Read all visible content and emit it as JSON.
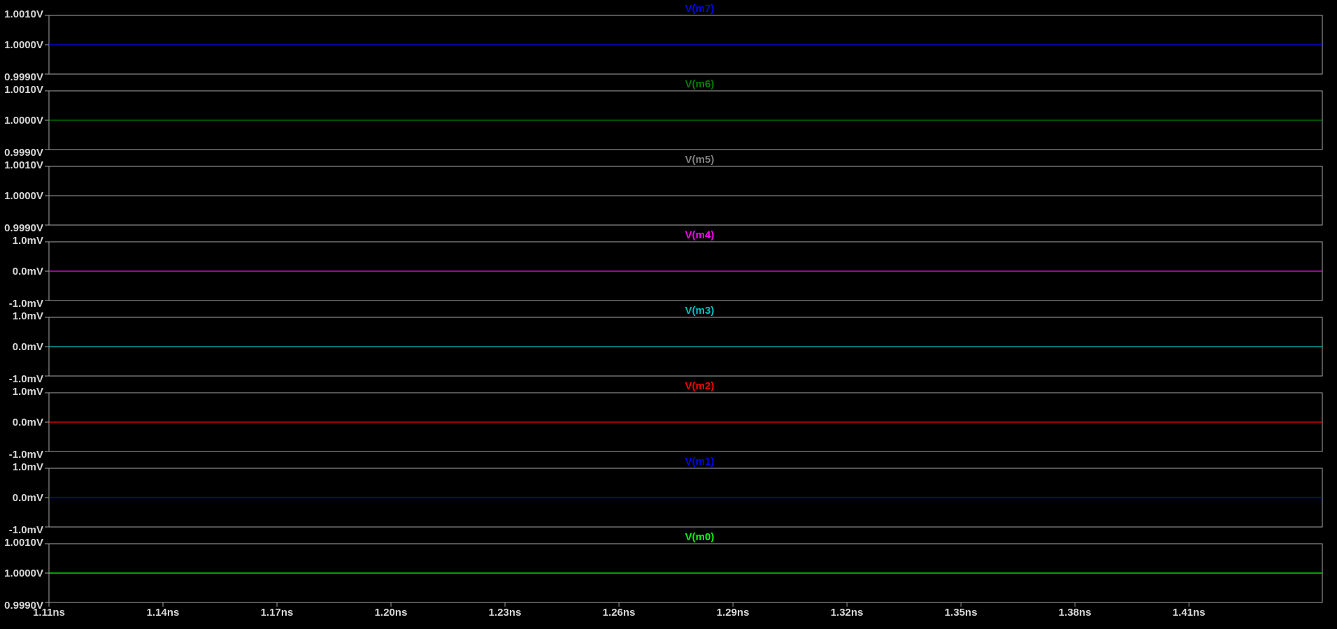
{
  "chart_data": {
    "type": "line",
    "grid": false,
    "x_axis": {
      "unit": "ns",
      "range": [
        1.11,
        1.4451
      ],
      "ticks": [
        1.11,
        1.14,
        1.17,
        1.2,
        1.23,
        1.26,
        1.29,
        1.32,
        1.35,
        1.38,
        1.41
      ],
      "tick_labels": [
        "1.11ns",
        "1.14ns",
        "1.17ns",
        "1.20ns",
        "1.23ns",
        "1.26ns",
        "1.29ns",
        "1.32ns",
        "1.35ns",
        "1.38ns",
        "1.41ns"
      ]
    },
    "panes": [
      {
        "name": "V(m7)",
        "color": "#0000ff",
        "ylim": [
          0.999,
          1.001
        ],
        "y_ticks": [
          1.001,
          1.0,
          0.999
        ],
        "y_tick_labels": [
          "1.0010V",
          "1.0000V",
          "0.9990V"
        ],
        "x": [
          1.11,
          1.4451
        ],
        "y": [
          1.0,
          1.0
        ]
      },
      {
        "name": "V(m6)",
        "color": "#008000",
        "ylim": [
          0.999,
          1.001
        ],
        "y_ticks": [
          1.001,
          1.0,
          0.999
        ],
        "y_tick_labels": [
          "1.0010V",
          "1.0000V",
          "0.9990V"
        ],
        "x": [
          1.11,
          1.4451
        ],
        "y": [
          1.0,
          1.0
        ]
      },
      {
        "name": "V(m5)",
        "color": "#808080",
        "ylim": [
          0.999,
          1.001
        ],
        "y_ticks": [
          1.001,
          1.0,
          0.999
        ],
        "y_tick_labels": [
          "1.0010V",
          "1.0000V",
          "0.9990V"
        ],
        "x": [
          1.11,
          1.4451
        ],
        "y": [
          1.0,
          1.0
        ]
      },
      {
        "name": "V(m4)",
        "color": "#ff00ff",
        "ylim": [
          -1.0,
          1.0
        ],
        "y_ticks": [
          1.0,
          0.0,
          -1.0
        ],
        "y_tick_labels": [
          "1.0mV",
          "0.0mV",
          "-1.0mV"
        ],
        "x": [
          1.11,
          1.4451
        ],
        "y": [
          0.0,
          0.0
        ]
      },
      {
        "name": "V(m3)",
        "color": "#00c0c0",
        "ylim": [
          -1.0,
          1.0
        ],
        "y_ticks": [
          1.0,
          0.0,
          -1.0
        ],
        "y_tick_labels": [
          "1.0mV",
          "0.0mV",
          "-1.0mV"
        ],
        "x": [
          1.11,
          1.4451
        ],
        "y": [
          0.0,
          0.0
        ]
      },
      {
        "name": "V(m2)",
        "color": "#ff0000",
        "ylim": [
          -1.0,
          1.0
        ],
        "y_ticks": [
          1.0,
          0.0,
          -1.0
        ],
        "y_tick_labels": [
          "1.0mV",
          "0.0mV",
          "-1.0mV"
        ],
        "x": [
          1.11,
          1.4451
        ],
        "y": [
          0.0,
          0.0
        ]
      },
      {
        "name": "V(m1)",
        "color": "#0000ff",
        "ylim": [
          -1.0,
          1.0
        ],
        "y_ticks": [
          1.0,
          0.0,
          -1.0
        ],
        "y_tick_labels": [
          "1.0mV",
          "0.0mV",
          "-1.0mV"
        ],
        "x": [
          1.11,
          1.4451
        ],
        "y": [
          0.0,
          0.0
        ]
      },
      {
        "name": "V(m0)",
        "color": "#00ff00",
        "ylim": [
          0.999,
          1.001
        ],
        "y_ticks": [
          1.001,
          1.0,
          0.999
        ],
        "y_tick_labels": [
          "1.0010V",
          "1.0000V",
          "0.9990V"
        ],
        "x": [
          1.11,
          1.4451
        ],
        "y": [
          1.0,
          1.0
        ]
      }
    ]
  }
}
